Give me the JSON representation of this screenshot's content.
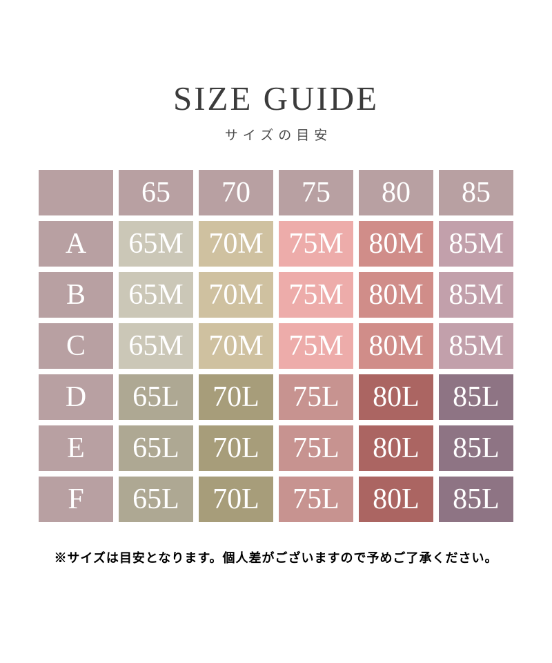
{
  "page": {
    "title": "SIZE GUIDE",
    "subtitle": "サイズの目安",
    "footnote": "※サイズは目安となります。個人差がございますので予めご了承ください。"
  },
  "colors": {
    "background": "#ffffff",
    "label_cell": "#b8a0a2",
    "cell_text": "#ffffff",
    "title_text": "#3b3b3b",
    "subtitle_text": "#4b4b4b",
    "footnote_text": "#000000"
  },
  "size_table": {
    "header": {
      "corner": "",
      "columns": [
        "65",
        "70",
        "75",
        "80",
        "85"
      ]
    },
    "rows": [
      {
        "label": "A",
        "cells": [
          {
            "text": "65M",
            "bg": "#cbc7b7"
          },
          {
            "text": "70M",
            "bg": "#cfc1a0"
          },
          {
            "text": "75M",
            "bg": "#edacaa"
          },
          {
            "text": "80M",
            "bg": "#d08d89"
          },
          {
            "text": "85M",
            "bg": "#c2a0ab"
          }
        ]
      },
      {
        "label": "B",
        "cells": [
          {
            "text": "65M",
            "bg": "#cbc7b7"
          },
          {
            "text": "70M",
            "bg": "#cfc1a0"
          },
          {
            "text": "75M",
            "bg": "#edacaa"
          },
          {
            "text": "80M",
            "bg": "#d08d89"
          },
          {
            "text": "85M",
            "bg": "#c2a0ab"
          }
        ]
      },
      {
        "label": "C",
        "cells": [
          {
            "text": "65M",
            "bg": "#cbc7b7"
          },
          {
            "text": "70M",
            "bg": "#cfc1a0"
          },
          {
            "text": "75M",
            "bg": "#edacaa"
          },
          {
            "text": "80M",
            "bg": "#d08d89"
          },
          {
            "text": "85M",
            "bg": "#c2a0ab"
          }
        ]
      },
      {
        "label": "D",
        "cells": [
          {
            "text": "65L",
            "bg": "#aea893"
          },
          {
            "text": "70L",
            "bg": "#a79d7a"
          },
          {
            "text": "75L",
            "bg": "#c79390"
          },
          {
            "text": "80L",
            "bg": "#ab6562"
          },
          {
            "text": "85L",
            "bg": "#8e7484"
          }
        ]
      },
      {
        "label": "E",
        "cells": [
          {
            "text": "65L",
            "bg": "#aea893"
          },
          {
            "text": "70L",
            "bg": "#a79d7a"
          },
          {
            "text": "75L",
            "bg": "#c79390"
          },
          {
            "text": "80L",
            "bg": "#ab6562"
          },
          {
            "text": "85L",
            "bg": "#8e7484"
          }
        ]
      },
      {
        "label": "F",
        "cells": [
          {
            "text": "65L",
            "bg": "#aea893"
          },
          {
            "text": "70L",
            "bg": "#a79d7a"
          },
          {
            "text": "75L",
            "bg": "#c79390"
          },
          {
            "text": "80L",
            "bg": "#ab6562"
          },
          {
            "text": "85L",
            "bg": "#8e7484"
          }
        ]
      }
    ]
  }
}
